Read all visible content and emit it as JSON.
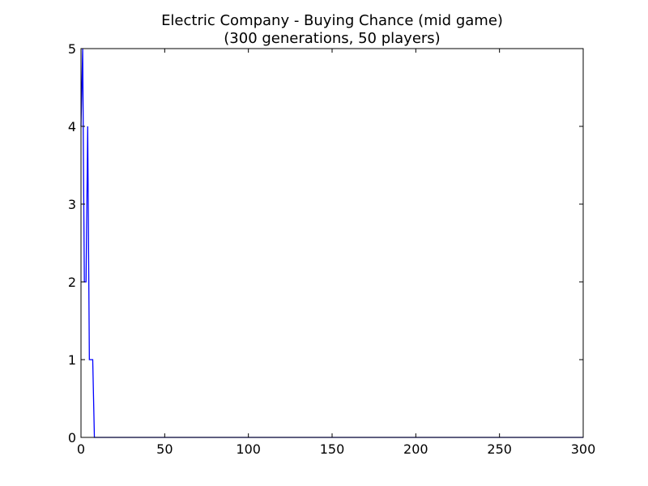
{
  "chart_data": {
    "type": "line",
    "title": "Electric Company - Buying Chance (mid game)",
    "subtitle": "(300 generations, 50 players)",
    "xlabel": "",
    "ylabel": "",
    "xlim": [
      0,
      300
    ],
    "ylim": [
      0,
      5
    ],
    "xticks": [
      0,
      50,
      100,
      150,
      200,
      250,
      300
    ],
    "yticks": [
      0,
      1,
      2,
      3,
      4,
      5
    ],
    "grid": false,
    "series": [
      {
        "color": "#0000ff",
        "x": [
          0,
          1,
          2,
          3,
          4,
          5,
          6,
          7,
          8,
          300
        ],
        "y": [
          4,
          5,
          2,
          2,
          4,
          1,
          1,
          1,
          0,
          0
        ]
      }
    ]
  }
}
